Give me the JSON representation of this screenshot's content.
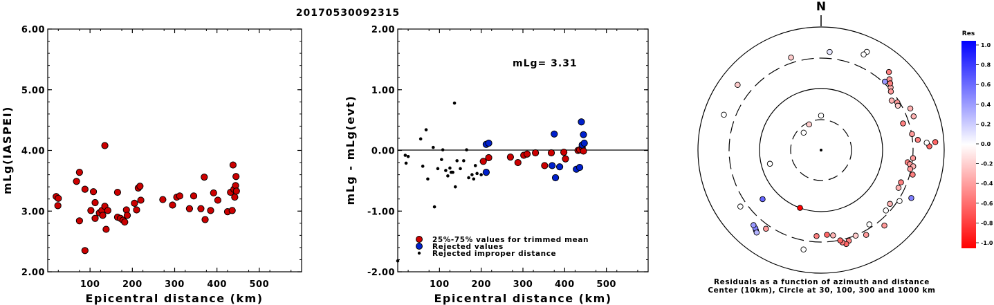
{
  "title": "20170530092315",
  "chart_data": [
    {
      "type": "scatter",
      "name": "left",
      "ylabel": "mLg(IASPEI)",
      "xlabel": "Epicentral distance (km)",
      "xlim": [
        0,
        600
      ],
      "ylim": [
        2.0,
        6.0
      ],
      "xticks": [
        "100",
        "200",
        "300",
        "400",
        "500"
      ],
      "yticks": [
        "2.00",
        "3.00",
        "4.00",
        "5.00",
        "6.00"
      ],
      "series": [
        {
          "color": "#cc0000",
          "points": [
            [
              20,
              3.24
            ],
            [
              25,
              3.21
            ],
            [
              24,
              3.09
            ],
            [
              68,
              3.49
            ],
            [
              75,
              3.64
            ],
            [
              75,
              2.84
            ],
            [
              88,
              3.36
            ],
            [
              88,
              2.35
            ],
            [
              102,
              3.01
            ],
            [
              108,
              3.32
            ],
            [
              112,
              3.14
            ],
            [
              112,
              2.88
            ],
            [
              122,
              2.97
            ],
            [
              128,
              3.01
            ],
            [
              130,
              2.93
            ],
            [
              135,
              3.08
            ],
            [
              135,
              4.08
            ],
            [
              138,
              2.7
            ],
            [
              142,
              3.01
            ],
            [
              165,
              3.31
            ],
            [
              165,
              2.9
            ],
            [
              172,
              2.88
            ],
            [
              178,
              2.85
            ],
            [
              182,
              2.82
            ],
            [
              186,
              3.02
            ],
            [
              188,
              2.93
            ],
            [
              205,
              3.13
            ],
            [
              210,
              3.02
            ],
            [
              214,
              3.38
            ],
            [
              218,
              3.41
            ],
            [
              220,
              3.18
            ],
            [
              272,
              3.19
            ],
            [
              295,
              3.1
            ],
            [
              305,
              3.23
            ],
            [
              312,
              3.25
            ],
            [
              335,
              3.04
            ],
            [
              345,
              3.25
            ],
            [
              362,
              3.04
            ],
            [
              370,
              3.56
            ],
            [
              372,
              2.86
            ],
            [
              385,
              3.01
            ],
            [
              392,
              3.3
            ],
            [
              402,
              3.18
            ],
            [
              425,
              2.99
            ],
            [
              432,
              3.31
            ],
            [
              436,
              3.01
            ],
            [
              438,
              3.76
            ],
            [
              440,
              3.36
            ],
            [
              442,
              3.23
            ],
            [
              444,
              3.42
            ],
            [
              445,
              3.57
            ],
            [
              446,
              3.33
            ]
          ]
        }
      ]
    },
    {
      "type": "scatter",
      "name": "middle",
      "ylabel": "mLg - mLg(evt)",
      "xlabel": "Epicentral distance (km)",
      "xlim": [
        0,
        600
      ],
      "ylim": [
        -2.0,
        2.0
      ],
      "xticks": [
        "100",
        "200",
        "300",
        "400",
        "500"
      ],
      "yticks": [
        "-2.00",
        "-1.00",
        "0.00",
        "1.00",
        "2.00"
      ],
      "annotation": "mLg= 3.31",
      "legend": [
        "25%-75% values for trimmed mean",
        "Rejected values",
        "Rejected improper distance"
      ],
      "series": [
        {
          "color": "#cc0000",
          "points": [
            [
              205,
              -0.18
            ],
            [
              218,
              -0.12
            ],
            [
              270,
              -0.11
            ],
            [
              288,
              -0.2
            ],
            [
              302,
              -0.08
            ],
            [
              310,
              -0.06
            ],
            [
              330,
              -0.04
            ],
            [
              352,
              -0.25
            ],
            [
              368,
              -0.04
            ],
            [
              398,
              -0.03
            ],
            [
              402,
              -0.14
            ],
            [
              432,
              0.0
            ],
            [
              436,
              0.01
            ],
            [
              442,
              0.05
            ],
            [
              445,
              -0.01
            ]
          ]
        },
        {
          "color": "#0020cc",
          "points": [
            [
              212,
              0.1
            ],
            [
              218,
              0.12
            ],
            [
              212,
              -0.36
            ],
            [
              370,
              -0.25
            ],
            [
              375,
              0.27
            ],
            [
              378,
              -0.45
            ],
            [
              388,
              -0.27
            ],
            [
              428,
              -0.31
            ],
            [
              436,
              -0.28
            ],
            [
              440,
              0.47
            ],
            [
              442,
              0.09
            ],
            [
              445,
              0.26
            ],
            [
              447,
              0.12
            ]
          ]
        },
        {
          "color": "#000000",
          "points": [
            [
              0,
              -1.82
            ],
            [
              18,
              -0.08
            ],
            [
              20,
              -0.21
            ],
            [
              25,
              -0.1
            ],
            [
              55,
              0.19
            ],
            [
              60,
              -0.26
            ],
            [
              68,
              0.34
            ],
            [
              72,
              -0.47
            ],
            [
              85,
              0.05
            ],
            [
              88,
              -0.93
            ],
            [
              96,
              -0.3
            ],
            [
              105,
              -0.15
            ],
            [
              108,
              0.01
            ],
            [
              115,
              -0.33
            ],
            [
              120,
              -0.42
            ],
            [
              125,
              -0.29
            ],
            [
              128,
              -0.36
            ],
            [
              132,
              -0.36
            ],
            [
              136,
              0.78
            ],
            [
              138,
              -0.6
            ],
            [
              142,
              -0.17
            ],
            [
              150,
              -0.3
            ],
            [
              158,
              -0.17
            ],
            [
              165,
              0.01
            ],
            [
              170,
              -0.45
            ],
            [
              178,
              -0.4
            ],
            [
              182,
              -0.47
            ],
            [
              186,
              -0.25
            ],
            [
              190,
              -0.38
            ],
            [
              200,
              -0.4
            ]
          ]
        }
      ]
    },
    {
      "type": "scatter",
      "name": "polar",
      "north_label": "N",
      "caption1": "Residuals as a function of azimuth and distance",
      "caption2": "Center (10km), Circle at 30, 100, 300 and 1000 km",
      "colorbar_title": "Res",
      "colorbar_ticks": [
        "1.0",
        "0.8",
        "0.6",
        "0.4",
        "0.2",
        "0.0",
        "-0.2",
        "-0.4",
        "-0.6",
        "-0.8",
        "-1.0"
      ],
      "points_residual": [
        [
          -45,
          0.2,
          0.0
        ],
        [
          -25,
          0.23,
          -0.2
        ],
        [
          0,
          0.28,
          0.0
        ],
        [
          -105,
          0.43,
          0.0
        ],
        [
          200,
          0.5,
          -1.0
        ],
        [
          230,
          0.62,
          0.6
        ],
        [
          -18,
          0.79,
          -0.2
        ],
        [
          5,
          0.8,
          0.1
        ],
        [
          25,
          0.88,
          0.0
        ],
        [
          24,
          0.85,
          0.0
        ],
        [
          44,
          0.8,
          -0.4
        ],
        [
          41,
          0.84,
          -0.5
        ],
        [
          43,
          0.76,
          0.4
        ],
        [
          48,
          0.76,
          -0.3
        ],
        [
          46,
          0.78,
          -0.5
        ],
        [
          50,
          0.74,
          -0.4
        ],
        [
          55,
          0.7,
          -0.3
        ],
        [
          58,
          0.73,
          -0.4
        ],
        [
          60,
          0.72,
          -0.2
        ],
        [
          65,
          0.8,
          -0.3
        ],
        [
          70,
          0.8,
          -0.3
        ],
        [
          72,
          0.7,
          -0.5
        ],
        [
          80,
          0.75,
          -0.4
        ],
        [
          84,
          0.79,
          -0.5
        ],
        [
          86,
          0.93,
          -0.6
        ],
        [
          88,
          0.88,
          -0.6
        ],
        [
          86,
          0.86,
          0.0
        ],
        [
          95,
          0.75,
          -0.4
        ],
        [
          98,
          0.71,
          -0.5
        ],
        [
          99,
          0.73,
          -0.4
        ],
        [
          100,
          0.76,
          -0.3
        ],
        [
          102,
          0.74,
          -0.4
        ],
        [
          105,
          0.77,
          -0.5
        ],
        [
          112,
          0.7,
          -0.5
        ],
        [
          116,
          0.7,
          -0.3
        ],
        [
          118,
          0.83,
          0.5
        ],
        [
          123,
          0.76,
          0.0
        ],
        [
          128,
          0.71,
          -0.3
        ],
        [
          133,
          0.72,
          0.0
        ],
        [
          140,
          0.8,
          -0.4
        ],
        [
          147,
          0.72,
          0.0
        ],
        [
          152,
          0.78,
          -0.4
        ],
        [
          158,
          0.75,
          -0.2
        ],
        [
          163,
          0.77,
          -0.5
        ],
        [
          165,
          0.79,
          -0.6
        ],
        [
          167,
          0.77,
          -0.5
        ],
        [
          168,
          0.75,
          -0.6
        ],
        [
          172,
          0.7,
          -0.3
        ],
        [
          176,
          0.69,
          -0.6
        ],
        [
          183,
          0.7,
          -0.5
        ],
        [
          190,
          0.82,
          0.0
        ],
        [
          215,
          0.78,
          -0.4
        ],
        [
          219,
          0.84,
          0.6
        ],
        [
          220,
          0.83,
          0.5
        ],
        [
          222,
          0.82,
          0.4
        ],
        [
          218,
          0.85,
          0.3
        ],
        [
          235,
          0.8,
          0.0
        ],
        [
          290,
          0.84,
          0.0
        ],
        [
          -52,
          0.86,
          -0.2
        ]
      ]
    }
  ]
}
